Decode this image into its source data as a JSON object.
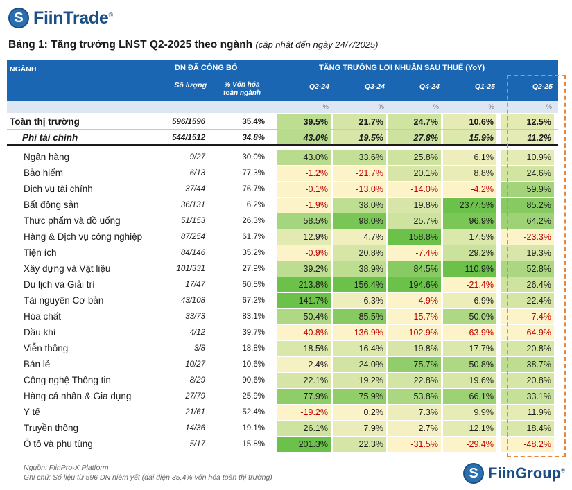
{
  "header": {
    "logo_mark": "S",
    "logo_text": "FiinTrade",
    "reg": "®",
    "title": "Bảng 1: Tăng trưởng LNST Q2-2025 theo ngành",
    "subtitle": "(cập nhật đến ngày 24/7/2025)"
  },
  "table_header": {
    "sector": "NGÀNH",
    "group_dn": "DN ĐÃ CÔNG BỐ",
    "group_growth": "TĂNG TRƯỞNG LỢI NHUẬN SAU THUẾ (YoY)",
    "col_count": "Số lượng",
    "col_cap_line1": "% Vốn hóa",
    "col_cap_line2": "toàn ngành",
    "quarters": [
      "Q2-24",
      "Q3-24",
      "Q4-24",
      "Q1-25",
      "Q2-25"
    ],
    "unit": "%"
  },
  "colors": {
    "header_bg": "#1b66b2",
    "negative": "#c00000",
    "highlight_border": "#e8873a",
    "heat_low": "#fcf3c8",
    "heat_high": "#6cc14a"
  },
  "rows": [
    {
      "name": "Toàn thị trường",
      "count": "596/1596",
      "cap": "35.4%",
      "values": [
        "39.5%",
        "21.7%",
        "24.7%",
        "10.6%",
        "12.5%"
      ],
      "nums": [
        39.5,
        21.7,
        24.7,
        10.6,
        12.5
      ],
      "style": "total"
    },
    {
      "name": "Phi tài chính",
      "count": "544/1512",
      "cap": "34.8%",
      "values": [
        "43.0%",
        "19.5%",
        "27.8%",
        "15.9%",
        "11.2%"
      ],
      "nums": [
        43.0,
        19.5,
        27.8,
        15.9,
        11.2
      ],
      "style": "sub"
    },
    {
      "name": "Ngân hàng",
      "count": "9/27",
      "cap": "30.0%",
      "values": [
        "43.0%",
        "33.6%",
        "25.8%",
        "6.1%",
        "10.9%"
      ],
      "nums": [
        43.0,
        33.6,
        25.8,
        6.1,
        10.9
      ]
    },
    {
      "name": "Bảo hiểm",
      "count": "6/13",
      "cap": "77.3%",
      "values": [
        "-1.2%",
        "-21.7%",
        "20.1%",
        "8.8%",
        "24.6%"
      ],
      "nums": [
        -1.2,
        -21.7,
        20.1,
        8.8,
        24.6
      ]
    },
    {
      "name": "Dịch vụ tài chính",
      "count": "37/44",
      "cap": "76.7%",
      "values": [
        "-0.1%",
        "-13.0%",
        "-14.0%",
        "-4.2%",
        "59.9%"
      ],
      "nums": [
        -0.1,
        -13.0,
        -14.0,
        -4.2,
        59.9
      ]
    },
    {
      "name": "Bất động sản",
      "count": "36/131",
      "cap": "6.2%",
      "values": [
        "-1.9%",
        "38.0%",
        "19.8%",
        "2377.5%",
        "85.2%"
      ],
      "nums": [
        -1.9,
        38.0,
        19.8,
        2377.5,
        85.2
      ]
    },
    {
      "name": "Thực phẩm và đồ uống",
      "count": "51/153",
      "cap": "26.3%",
      "values": [
        "58.5%",
        "98.0%",
        "25.7%",
        "96.9%",
        "64.2%"
      ],
      "nums": [
        58.5,
        98.0,
        25.7,
        96.9,
        64.2
      ]
    },
    {
      "name": "Hàng & Dịch vụ công nghiệp",
      "count": "87/254",
      "cap": "61.7%",
      "values": [
        "12.9%",
        "4.7%",
        "158.8%",
        "17.5%",
        "-23.3%"
      ],
      "nums": [
        12.9,
        4.7,
        158.8,
        17.5,
        -23.3
      ]
    },
    {
      "name": "Tiện ích",
      "count": "84/146",
      "cap": "35.2%",
      "values": [
        "-0.9%",
        "20.8%",
        "-7.4%",
        "29.2%",
        "19.3%"
      ],
      "nums": [
        -0.9,
        20.8,
        -7.4,
        29.2,
        19.3
      ]
    },
    {
      "name": "Xây dựng và Vật liệu",
      "count": "101/331",
      "cap": "27.9%",
      "values": [
        "39.2%",
        "38.9%",
        "84.5%",
        "110.9%",
        "52.8%"
      ],
      "nums": [
        39.2,
        38.9,
        84.5,
        110.9,
        52.8
      ]
    },
    {
      "name": "Du lịch và Giải trí",
      "count": "17/47",
      "cap": "60.5%",
      "values": [
        "213.8%",
        "156.4%",
        "194.6%",
        "-21.4%",
        "26.4%"
      ],
      "nums": [
        213.8,
        156.4,
        194.6,
        -21.4,
        26.4
      ]
    },
    {
      "name": "Tài nguyên Cơ bản",
      "count": "43/108",
      "cap": "67.2%",
      "values": [
        "141.7%",
        "6.3%",
        "-4.9%",
        "6.9%",
        "22.4%"
      ],
      "nums": [
        141.7,
        6.3,
        -4.9,
        6.9,
        22.4
      ]
    },
    {
      "name": "Hóa chất",
      "count": "33/73",
      "cap": "83.1%",
      "values": [
        "50.4%",
        "85.5%",
        "-15.7%",
        "50.0%",
        "-7.4%"
      ],
      "nums": [
        50.4,
        85.5,
        -15.7,
        50.0,
        -7.4
      ]
    },
    {
      "name": "Dầu khí",
      "count": "4/12",
      "cap": "39.7%",
      "values": [
        "-40.8%",
        "-136.9%",
        "-102.9%",
        "-63.9%",
        "-64.9%"
      ],
      "nums": [
        -40.8,
        -136.9,
        -102.9,
        -63.9,
        -64.9
      ]
    },
    {
      "name": "Viễn thông",
      "count": "3/8",
      "cap": "18.8%",
      "values": [
        "18.5%",
        "16.4%",
        "19.8%",
        "17.7%",
        "20.8%"
      ],
      "nums": [
        18.5,
        16.4,
        19.8,
        17.7,
        20.8
      ]
    },
    {
      "name": "Bán lẻ",
      "count": "10/27",
      "cap": "10.6%",
      "values": [
        "2.4%",
        "24.0%",
        "75.7%",
        "50.8%",
        "38.7%"
      ],
      "nums": [
        2.4,
        24.0,
        75.7,
        50.8,
        38.7
      ]
    },
    {
      "name": "Công nghệ Thông tin",
      "count": "8/29",
      "cap": "90.6%",
      "values": [
        "22.1%",
        "19.2%",
        "22.8%",
        "19.6%",
        "20.8%"
      ],
      "nums": [
        22.1,
        19.2,
        22.8,
        19.6,
        20.8
      ]
    },
    {
      "name": "Hàng cá nhân & Gia dụng",
      "count": "27/79",
      "cap": "25.9%",
      "values": [
        "77.9%",
        "75.9%",
        "53.8%",
        "66.1%",
        "33.1%"
      ],
      "nums": [
        77.9,
        75.9,
        53.8,
        66.1,
        33.1
      ]
    },
    {
      "name": "Y tế",
      "count": "21/61",
      "cap": "52.4%",
      "values": [
        "-19.2%",
        "0.2%",
        "7.3%",
        "9.9%",
        "11.9%"
      ],
      "nums": [
        -19.2,
        0.2,
        7.3,
        9.9,
        11.9
      ]
    },
    {
      "name": "Truyền thông",
      "count": "14/36",
      "cap": "19.1%",
      "values": [
        "26.1%",
        "7.9%",
        "2.7%",
        "12.1%",
        "18.4%"
      ],
      "nums": [
        26.1,
        7.9,
        2.7,
        12.1,
        18.4
      ]
    },
    {
      "name": "Ô tô và phụ tùng",
      "count": "5/17",
      "cap": "15.8%",
      "values": [
        "201.3%",
        "22.3%",
        "-31.5%",
        "-29.4%",
        "-48.2%"
      ],
      "nums": [
        201.3,
        22.3,
        -31.5,
        -29.4,
        -48.2
      ]
    }
  ],
  "footer": {
    "source": "Nguồn: FiinPro-X Platform",
    "note": "Ghi chú: Số liệu từ 596 DN niêm yết (đại diện 35,4% vốn hóa toàn thị trường)",
    "logo_text": "FiinGroup",
    "reg": "®"
  }
}
